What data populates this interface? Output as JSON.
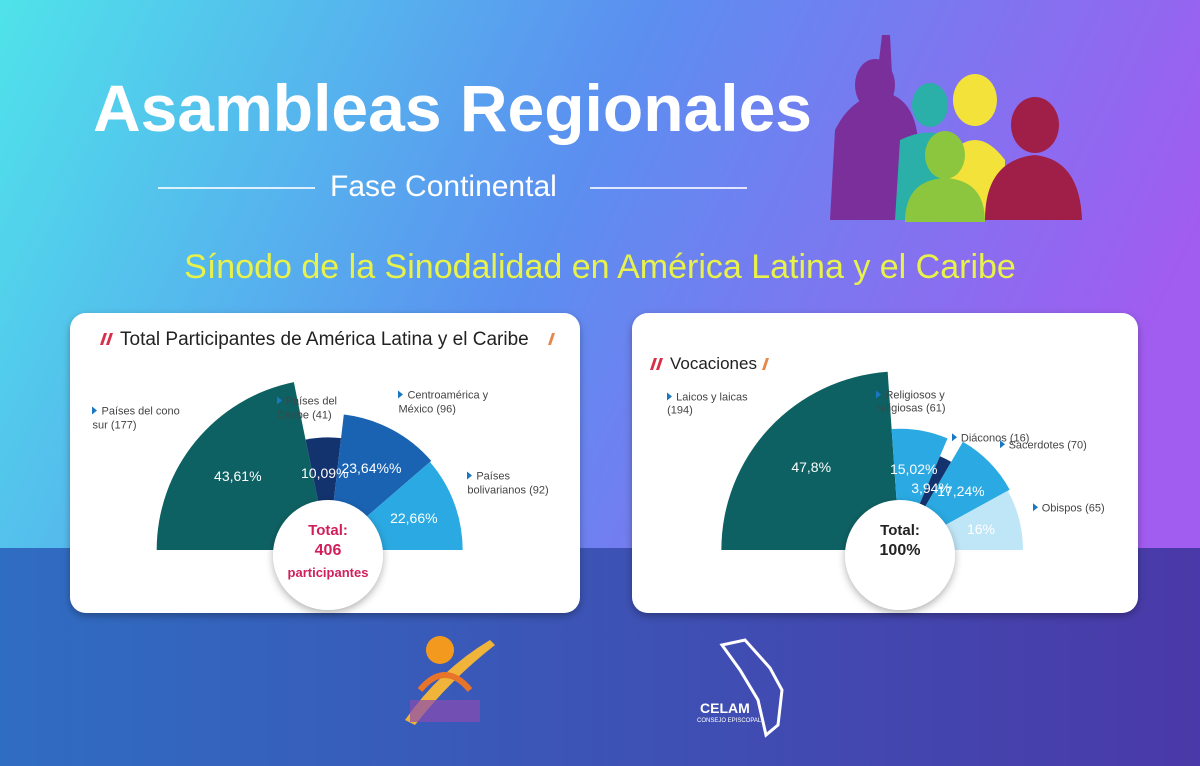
{
  "header": {
    "title": "Asambleas Regionales",
    "subtitle": "Fase Continental",
    "tagline": "Sínodo de la Sinodalidad en América Latina y el Caribe"
  },
  "chart_data": [
    {
      "type": "semicircle-rose",
      "title": "Total Participantes de América Latina y el Caribe",
      "categories": [
        "Países del cono sur (177)",
        "Países del Caribe (41)",
        "Centroamérica y México (96)",
        "Países bolivarianos (92)"
      ],
      "values": [
        43.61,
        10.09,
        23.64,
        22.66
      ],
      "value_labels": [
        "43,61%",
        "10,09%",
        "23,64%%",
        "22,66%"
      ],
      "colors": [
        "#0e6163",
        "#13336e",
        "#1a63b3",
        "#2aa9e2"
      ],
      "total": {
        "label": "Total:",
        "value": 406,
        "unit": "participantes"
      }
    },
    {
      "type": "semicircle-rose",
      "title": "Vocaciones",
      "categories": [
        "Laicos y laicas (194)",
        "Religiosos y religiosas (61)",
        "Diáconos (16)",
        "Sacerdotes (70)",
        "Obispos (65)"
      ],
      "values": [
        47.8,
        15.02,
        3.94,
        17.24,
        16
      ],
      "value_labels": [
        "47,8%",
        "15,02%",
        "3,94%",
        "17,24%",
        "16%"
      ],
      "colors": [
        "#0e6163",
        "#2aa9e2",
        "#13336e",
        "#2aa9e2",
        "#bfe6f7"
      ],
      "total": {
        "label": "Total:",
        "value": 100,
        "value_label": "100%"
      }
    }
  ],
  "logos": {
    "celam": "CELAM",
    "celam_sub": "CONSEJO EPISCOPAL"
  }
}
